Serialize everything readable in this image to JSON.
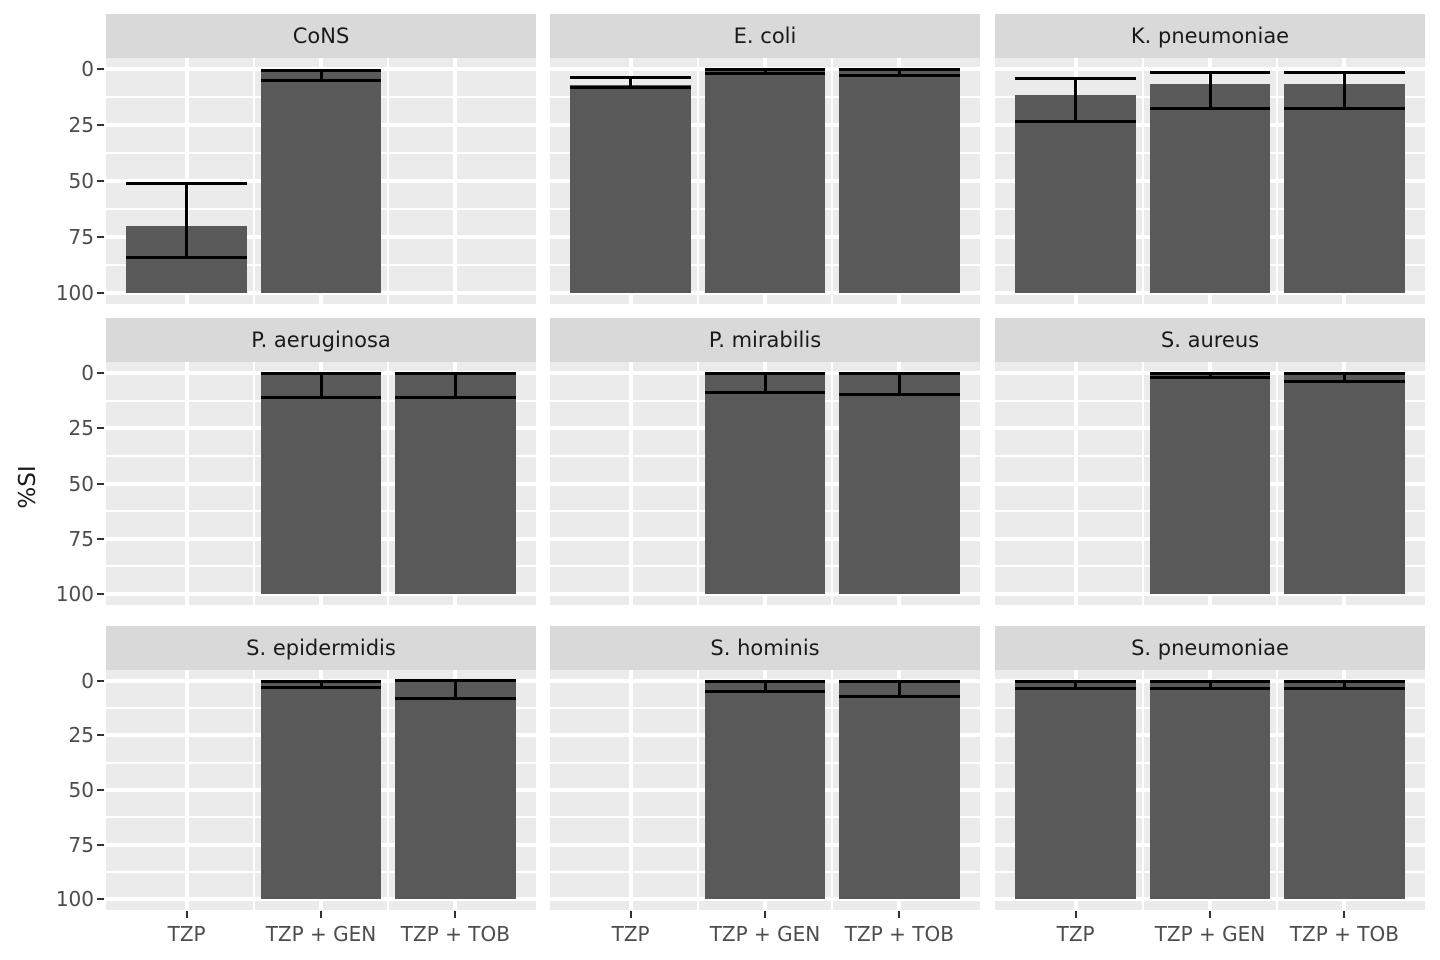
{
  "figure": {
    "ylabel": "%SI",
    "y_tick_labels": [
      "100",
      "75",
      "50",
      "25",
      "0"
    ],
    "x_categories": [
      "TZP",
      "TZP + GEN",
      "TZP + TOB"
    ],
    "colors": {
      "bar_fill": "#595959",
      "errorbar": "#000000",
      "panel_background": "#ebebeb",
      "strip_background": "#d9d9d9",
      "gridline": "#ffffff",
      "axis_text": "#4d4d4d",
      "strip_text": "#1a1a1a"
    }
  },
  "chart_data": {
    "type": "bar",
    "title": "",
    "xlabel": "",
    "ylabel": "%SI",
    "ylim": [
      0,
      100
    ],
    "y_major_ticks": [
      0,
      25,
      50,
      75,
      100
    ],
    "y_minor_ticks": [
      12.5,
      37.5,
      62.5,
      87.5
    ],
    "grid": "white major and minor gridlines on gray panel",
    "legend_position": "none",
    "error_bars": "black, cap width equal to bar width, values are ci_low / ci_high",
    "categories": [
      "TZP",
      "TZP + GEN",
      "TZP + TOB"
    ],
    "facet_layout": {
      "rows": 3,
      "cols": 3
    },
    "facets": [
      {
        "id": "cons",
        "title": "CoNS",
        "bars": [
          {
            "category": "TZP",
            "value": 30,
            "ci_low": 16,
            "ci_high": 49
          },
          {
            "category": "TZP + GEN",
            "value": 99,
            "ci_low": 95,
            "ci_high": 99.5
          },
          {
            "category": "TZP + TOB",
            "value": null,
            "ci_low": null,
            "ci_high": null
          }
        ]
      },
      {
        "id": "e-coli",
        "title": "E. coli",
        "bars": [
          {
            "category": "TZP",
            "value": 93,
            "ci_low": 92,
            "ci_high": 96.5
          },
          {
            "category": "TZP + GEN",
            "value": 99.5,
            "ci_low": 98,
            "ci_high": 100
          },
          {
            "category": "TZP + TOB",
            "value": 99,
            "ci_low": 97,
            "ci_high": 99.7
          }
        ]
      },
      {
        "id": "k-pneumoniae",
        "title": "K. pneumoniae",
        "bars": [
          {
            "category": "TZP",
            "value": 88.5,
            "ci_low": 76.5,
            "ci_high": 96
          },
          {
            "category": "TZP + GEN",
            "value": 93.5,
            "ci_low": 82.5,
            "ci_high": 98.5
          },
          {
            "category": "TZP + TOB",
            "value": 93.5,
            "ci_low": 82.5,
            "ci_high": 98.5
          }
        ]
      },
      {
        "id": "p-aeruginosa",
        "title": "P. aeruginosa",
        "bars": [
          {
            "category": "TZP",
            "value": null,
            "ci_low": null,
            "ci_high": null
          },
          {
            "category": "TZP + GEN",
            "value": 100,
            "ci_low": 89,
            "ci_high": 100
          },
          {
            "category": "TZP + TOB",
            "value": 100,
            "ci_low": 89,
            "ci_high": 100
          }
        ]
      },
      {
        "id": "p-mirabilis",
        "title": "P. mirabilis",
        "bars": [
          {
            "category": "TZP",
            "value": null,
            "ci_low": null,
            "ci_high": null
          },
          {
            "category": "TZP + GEN",
            "value": 100,
            "ci_low": 91,
            "ci_high": 100
          },
          {
            "category": "TZP + TOB",
            "value": 100,
            "ci_low": 90.5,
            "ci_high": 100
          }
        ]
      },
      {
        "id": "s-aureus",
        "title": "S. aureus",
        "bars": [
          {
            "category": "TZP",
            "value": null,
            "ci_low": null,
            "ci_high": null
          },
          {
            "category": "TZP + GEN",
            "value": 99.5,
            "ci_low": 98,
            "ci_high": 99.8
          },
          {
            "category": "TZP + TOB",
            "value": 99.5,
            "ci_low": 96,
            "ci_high": 99.8
          }
        ]
      },
      {
        "id": "s-epidermidis",
        "title": "S. epidermidis",
        "bars": [
          {
            "category": "TZP",
            "value": null,
            "ci_low": null,
            "ci_high": null
          },
          {
            "category": "TZP + GEN",
            "value": 99.5,
            "ci_low": 97,
            "ci_high": 99.8
          },
          {
            "category": "TZP + TOB",
            "value": 100,
            "ci_low": 92,
            "ci_high": 100
          }
        ]
      },
      {
        "id": "s-hominis",
        "title": "S. hominis",
        "bars": [
          {
            "category": "TZP",
            "value": null,
            "ci_low": null,
            "ci_high": null
          },
          {
            "category": "TZP + GEN",
            "value": 99.5,
            "ci_low": 95,
            "ci_high": 99.8
          },
          {
            "category": "TZP + TOB",
            "value": 99.5,
            "ci_low": 93,
            "ci_high": 99.8
          }
        ]
      },
      {
        "id": "s-pneumoniae",
        "title": "S. pneumoniae",
        "bars": [
          {
            "category": "TZP",
            "value": 99.5,
            "ci_low": 96.5,
            "ci_high": 99.8
          },
          {
            "category": "TZP + GEN",
            "value": 99.5,
            "ci_low": 96.5,
            "ci_high": 99.8
          },
          {
            "category": "TZP + TOB",
            "value": 99.5,
            "ci_low": 96.5,
            "ci_high": 99.8
          }
        ]
      }
    ]
  }
}
